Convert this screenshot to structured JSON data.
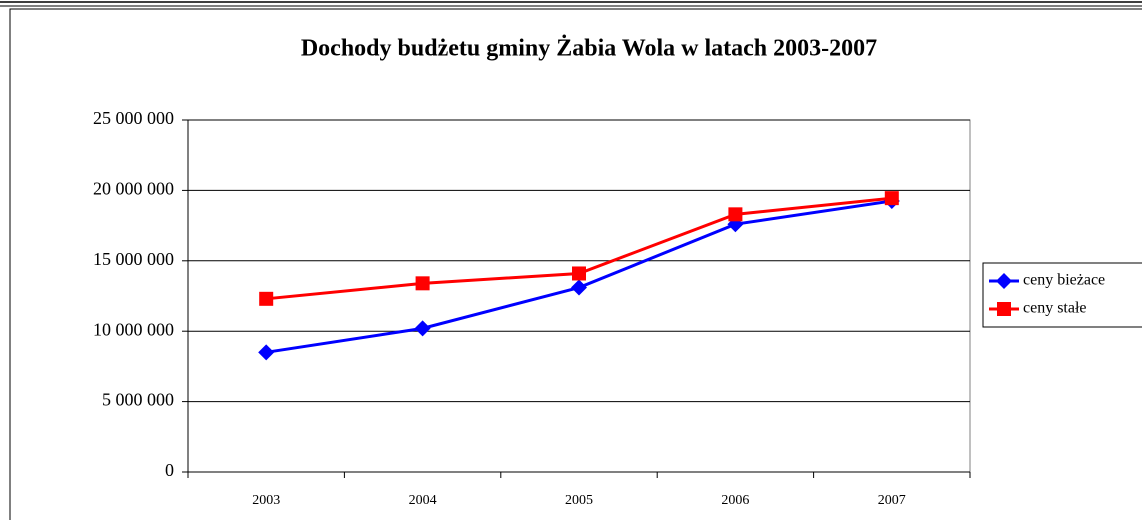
{
  "chart_data": {
    "type": "line",
    "title": "Dochody budżetu gminy Żabia Wola w latach 2003-2007",
    "categories": [
      "2003",
      "2004",
      "2005",
      "2006",
      "2007"
    ],
    "series": [
      {
        "name": "ceny bieżace",
        "color": "#0000ff",
        "marker": "diamond",
        "values": [
          8500000,
          10200000,
          13100000,
          17600000,
          19250000
        ]
      },
      {
        "name": "ceny stałe",
        "color": "#ff0000",
        "marker": "square",
        "values": [
          12300000,
          13400000,
          14100000,
          18300000,
          19450000
        ]
      }
    ],
    "ylim": [
      0,
      25000000
    ],
    "yticks": [
      {
        "value": 0,
        "label": "0"
      },
      {
        "value": 5000000,
        "label": "5 000 000"
      },
      {
        "value": 10000000,
        "label": "10 000 000"
      },
      {
        "value": 15000000,
        "label": "15 000 000"
      },
      {
        "value": 20000000,
        "label": "20 000 000"
      },
      {
        "value": 25000000,
        "label": "25 000 000"
      }
    ],
    "grid": true,
    "legend": "right"
  }
}
